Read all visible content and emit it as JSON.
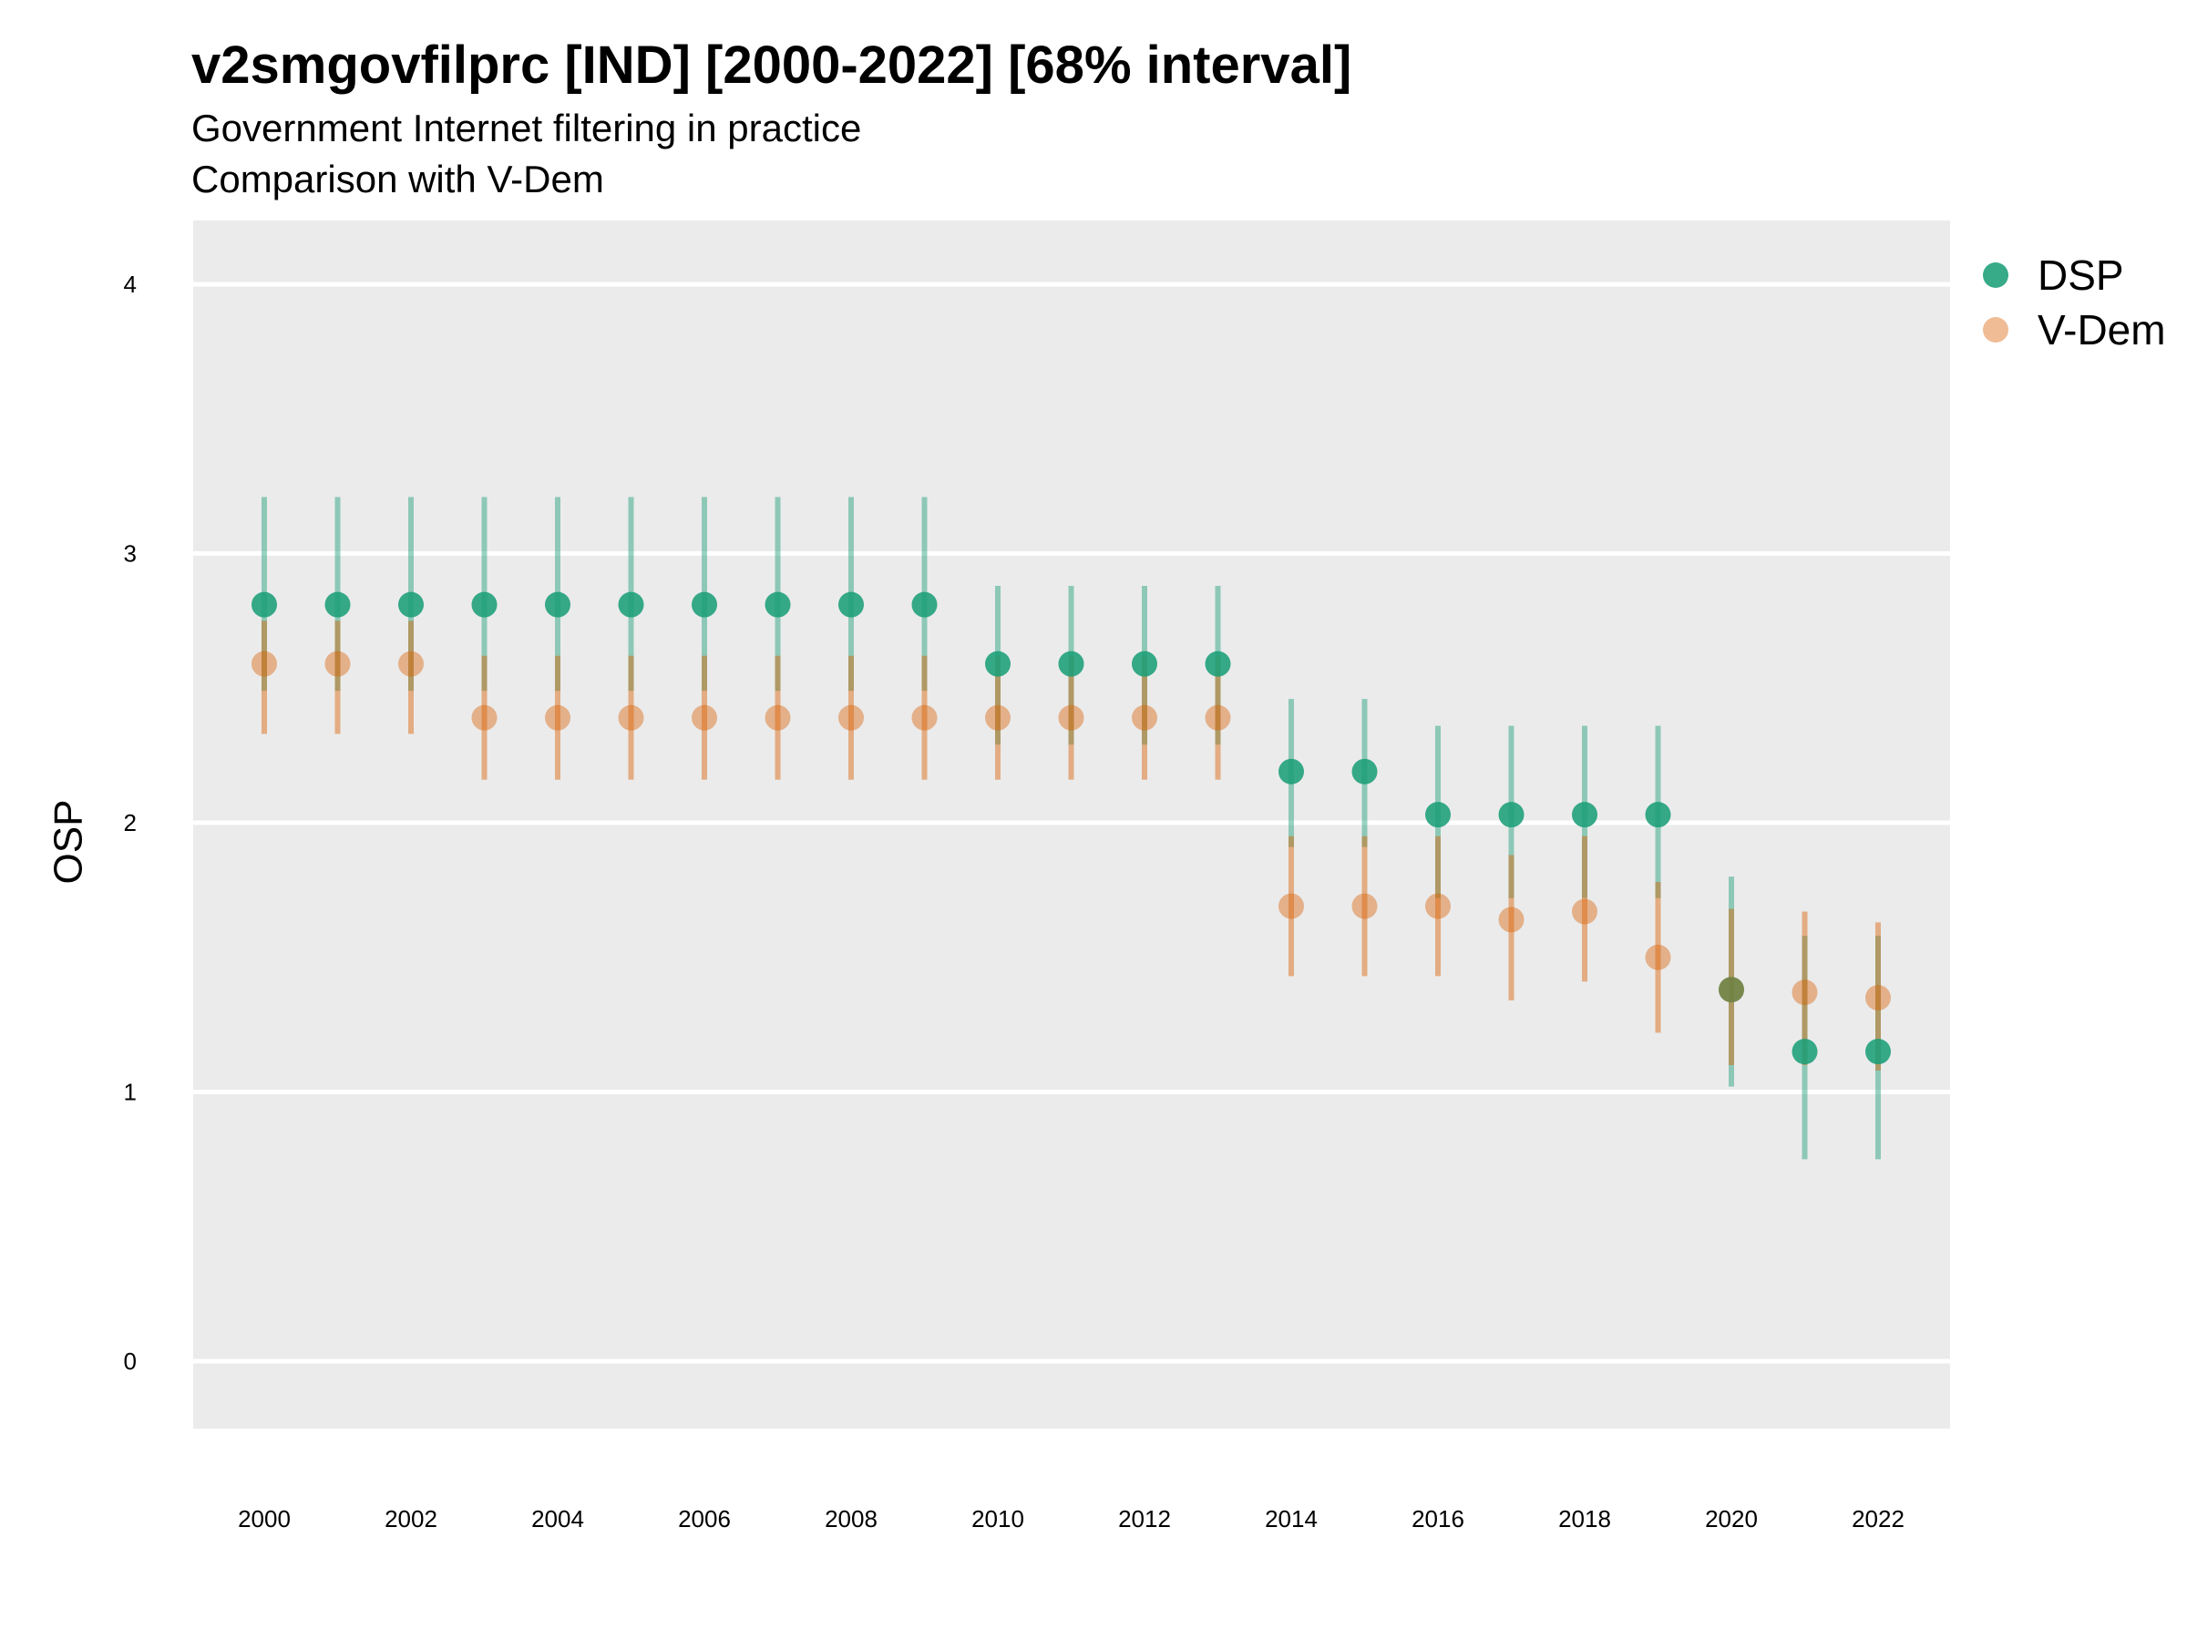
{
  "title": "v2smgovfilprc [IND] [2000-2022] [68% interval]",
  "subtitle1": "Government Internet filtering in practice",
  "subtitle2": "Comparison with V-Dem",
  "chart_data": {
    "type": "scatter",
    "ylabel": "OSP",
    "xlabel": "",
    "ylim": [
      -0.25,
      4.25
    ],
    "y_ticks": [
      0,
      1,
      2,
      3,
      4
    ],
    "x_ticks": [
      2000,
      2002,
      2004,
      2006,
      2008,
      2010,
      2012,
      2014,
      2016,
      2018,
      2020,
      2022
    ],
    "x": [
      2000,
      2001,
      2002,
      2003,
      2004,
      2005,
      2006,
      2007,
      2008,
      2009,
      2010,
      2011,
      2012,
      2013,
      2014,
      2015,
      2016,
      2017,
      2018,
      2019,
      2020,
      2021,
      2022
    ],
    "legend_position": "right",
    "series": [
      {
        "name": "DSP",
        "color": "#1b9e77",
        "values": [
          2.81,
          2.81,
          2.81,
          2.81,
          2.81,
          2.81,
          2.81,
          2.81,
          2.81,
          2.81,
          2.59,
          2.59,
          2.59,
          2.59,
          2.19,
          2.19,
          2.03,
          2.03,
          2.03,
          2.03,
          1.38,
          1.15,
          1.15
        ],
        "lower": [
          2.49,
          2.49,
          2.49,
          2.49,
          2.49,
          2.49,
          2.49,
          2.49,
          2.49,
          2.49,
          2.29,
          2.29,
          2.29,
          2.29,
          1.91,
          1.91,
          1.72,
          1.72,
          1.72,
          1.72,
          1.02,
          0.75,
          0.75
        ],
        "upper": [
          3.21,
          3.21,
          3.21,
          3.21,
          3.21,
          3.21,
          3.21,
          3.21,
          3.21,
          3.21,
          2.88,
          2.88,
          2.88,
          2.88,
          2.46,
          2.46,
          2.36,
          2.36,
          2.36,
          2.36,
          1.8,
          1.58,
          1.58
        ]
      },
      {
        "name": "V-Dem",
        "color": "#d95f02",
        "values": [
          2.59,
          2.59,
          2.59,
          2.39,
          2.39,
          2.39,
          2.39,
          2.39,
          2.39,
          2.39,
          2.39,
          2.39,
          2.39,
          2.39,
          1.69,
          1.69,
          1.69,
          1.64,
          1.67,
          1.5,
          1.38,
          1.37,
          1.35
        ],
        "lower": [
          2.33,
          2.33,
          2.33,
          2.16,
          2.16,
          2.16,
          2.16,
          2.16,
          2.16,
          2.16,
          2.16,
          2.16,
          2.16,
          2.16,
          1.43,
          1.43,
          1.43,
          1.34,
          1.41,
          1.22,
          1.1,
          1.1,
          1.08
        ],
        "upper": [
          2.75,
          2.75,
          2.75,
          2.62,
          2.62,
          2.62,
          2.62,
          2.62,
          2.62,
          2.62,
          2.62,
          2.62,
          2.62,
          2.62,
          1.95,
          1.95,
          1.95,
          1.88,
          1.95,
          1.78,
          1.68,
          1.67,
          1.63
        ]
      }
    ]
  }
}
